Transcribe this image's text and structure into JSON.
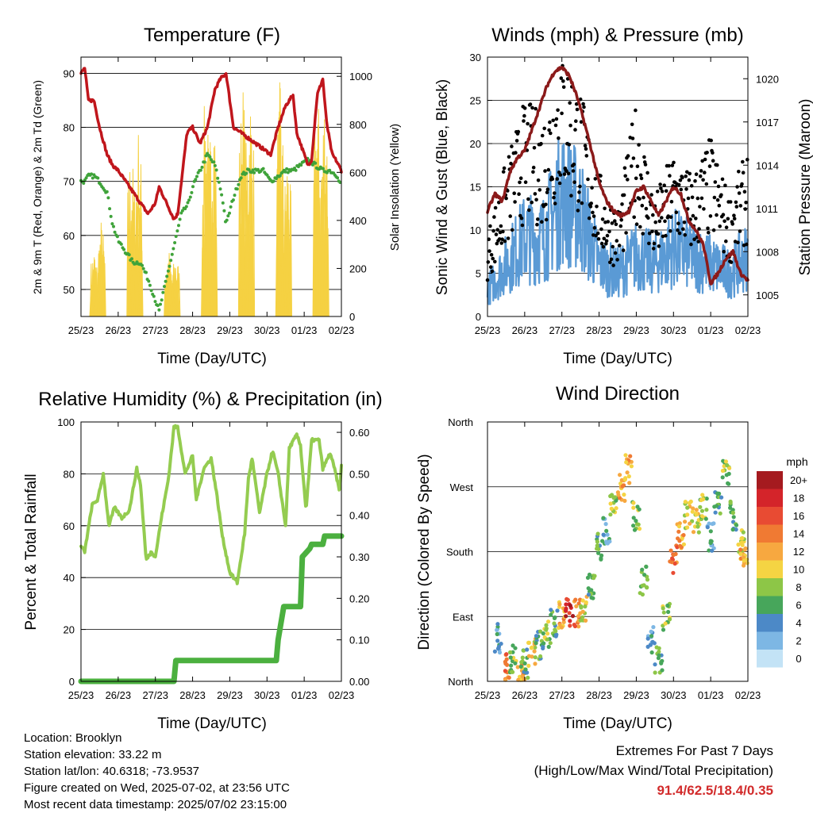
{
  "info": {
    "location": "Location: Brooklyn",
    "elevation": "Station elevation: 33.22 m",
    "latlon": "Station lat/lon: 40.6318; -73.9537",
    "created": "Figure created on Wed, 2025-07-02, at 23:56 UTC",
    "recent": "Most recent data timestamp: 2025/07/02 23:15:00"
  },
  "extremes": {
    "title": "Extremes For Past 7 Days",
    "subtitle": "(High/Low/Max Wind/Total Precipitation)",
    "values": "91.4/62.5/18.4/0.35"
  },
  "colors": {
    "temperature": "#c0161c",
    "dewpoint": "#3fa33a",
    "solar": "#f5d142",
    "wind": "#5a9ad5",
    "gust": "#000000",
    "pressure": "#8b1a1a",
    "humidity": "#94cc50",
    "precip": "#4bb03f"
  },
  "chart_data": [
    {
      "type": "line",
      "title": "Temperature (F)",
      "xlabel": "Time (Day/UTC)",
      "ylabel": "2m & 9m T (Red, Orange) & 2m Td (Green)",
      "ylabel_right": "Solar Insolation (Yellow)",
      "x_ticks": [
        "25/23",
        "26/23",
        "27/23",
        "28/23",
        "29/23",
        "30/23",
        "01/23",
        "02/23"
      ],
      "ylim": [
        45,
        93
      ],
      "y_ticks": [
        50,
        60,
        70,
        80,
        90
      ],
      "ylim_right": [
        0,
        1080
      ],
      "y_ticks_right": [
        0,
        200,
        400,
        600,
        800,
        1000
      ],
      "series": [
        {
          "name": "2m T",
          "x": [
            0,
            0.1,
            0.2,
            0.35,
            0.5,
            0.7,
            0.85,
            1.0,
            1.2,
            1.4,
            1.6,
            1.8,
            2.0,
            2.1,
            2.3,
            2.5,
            2.6,
            2.7,
            2.85,
            3.0,
            3.2,
            3.4,
            3.6,
            3.75,
            3.9,
            4.1,
            4.3,
            4.5,
            4.7,
            4.9,
            5.1,
            5.3,
            5.5,
            5.7,
            5.8,
            5.95,
            6.1,
            6.2,
            6.35,
            6.5,
            6.6,
            6.75,
            6.85,
            7.0
          ],
          "values": [
            90,
            91,
            85,
            85,
            80,
            75,
            73,
            72,
            70,
            68,
            66,
            64,
            66,
            69,
            66,
            63,
            64,
            70,
            79,
            80,
            77,
            80,
            87,
            89,
            90,
            80,
            79,
            78,
            77,
            76,
            75,
            80,
            84,
            86,
            79,
            76,
            73,
            74,
            86,
            89,
            81,
            75,
            74,
            72
          ]
        },
        {
          "name": "2m Td",
          "x": [
            0,
            0.1,
            0.2,
            0.35,
            0.5,
            0.7,
            0.85,
            1.0,
            1.2,
            1.4,
            1.6,
            1.8,
            2.0,
            2.1,
            2.3,
            2.5,
            2.7,
            2.9,
            3.0,
            3.2,
            3.4,
            3.6,
            3.8,
            3.9,
            4.1,
            4.3,
            4.5,
            4.7,
            4.9,
            5.1,
            5.3,
            5.5,
            5.7,
            5.9,
            6.1,
            6.3,
            6.5,
            6.7,
            6.9,
            7.0
          ],
          "values": [
            70,
            70,
            71,
            71,
            70,
            68,
            62,
            59,
            57,
            55,
            55,
            52,
            48,
            46,
            52,
            58,
            64,
            66,
            69,
            72,
            75,
            73,
            67,
            62,
            67,
            71,
            72,
            72,
            72,
            70,
            71,
            72,
            72,
            73,
            74,
            73,
            72,
            72,
            71,
            69
          ]
        },
        {
          "name": "Solar",
          "axis": "right",
          "peaks_x": [
            0.35,
            0.55,
            1.35,
            1.55,
            2.35,
            2.55,
            3.35,
            3.55,
            4.35,
            4.55,
            5.35,
            5.55,
            6.35,
            6.55
          ],
          "peaks": [
            300,
            420,
            750,
            820,
            300,
            280,
            980,
            1000,
            1010,
            1000,
            1000,
            720,
            1000,
            1000
          ]
        }
      ]
    },
    {
      "type": "scatter",
      "title": "Winds (mph) & Pressure (mb)",
      "xlabel": "Time (Day/UTC)",
      "ylabel": "Sonic Wind & Gust (Blue, Black)",
      "ylabel_right": "Station Pressure (Maroon)",
      "x_ticks": [
        "25/23",
        "26/23",
        "27/23",
        "28/23",
        "29/23",
        "30/23",
        "01/23",
        "02/23"
      ],
      "ylim": [
        0,
        30
      ],
      "y_ticks": [
        0,
        5,
        10,
        15,
        20,
        25,
        30
      ],
      "ylim_right": [
        1003.5,
        1021.5
      ],
      "y_ticks_right": [
        1005,
        1008,
        1011,
        1014,
        1017,
        1020
      ],
      "series": [
        {
          "name": "Wind",
          "x": [
            0,
            0.5,
            1.0,
            1.5,
            2.0,
            2.5,
            3.0,
            3.5,
            4.0,
            4.5,
            5.0,
            5.5,
            6.0,
            6.5,
            7.0
          ],
          "values": [
            3,
            6,
            9,
            9,
            14,
            12,
            6,
            5,
            7,
            6,
            8,
            7,
            6,
            5,
            7
          ]
        },
        {
          "name": "Gust",
          "x": [
            0,
            0.5,
            1.0,
            1.5,
            2.0,
            2.5,
            3.0,
            3.5,
            4.0,
            4.5,
            5.0,
            5.5,
            6.0,
            6.5,
            7.0
          ],
          "values": [
            7,
            13,
            18,
            17,
            23,
            19,
            12,
            9,
            18,
            10,
            14,
            12,
            15,
            10,
            14
          ]
        },
        {
          "name": "Pressure",
          "axis": "right",
          "x": [
            0,
            0.2,
            0.4,
            0.6,
            0.8,
            1.0,
            1.2,
            1.4,
            1.6,
            1.8,
            2.0,
            2.2,
            2.4,
            2.6,
            2.8,
            3.0,
            3.2,
            3.4,
            3.6,
            3.8,
            4.0,
            4.2,
            4.4,
            4.6,
            4.8,
            5.0,
            5.2,
            5.4,
            5.6,
            5.8,
            6.0,
            6.2,
            6.4,
            6.6,
            6.8,
            7.0
          ],
          "values": [
            1010.8,
            1012,
            1011.5,
            1013.5,
            1014.5,
            1015,
            1016.5,
            1018,
            1019.5,
            1020.5,
            1020.8,
            1020.2,
            1018.8,
            1017,
            1015,
            1012.8,
            1011.5,
            1010.8,
            1010.5,
            1010.8,
            1012.2,
            1012.5,
            1011.5,
            1010.5,
            1011.5,
            1012.5,
            1012,
            1010.2,
            1009.5,
            1008.5,
            1005.8,
            1006.5,
            1007.5,
            1008,
            1006.5,
            1006
          ]
        }
      ]
    },
    {
      "type": "line",
      "title": "Relative Humidity (%) & Precipitation (in)",
      "xlabel": "Time (Day/UTC)",
      "ylabel": "Percent & Total Rainfall",
      "x_ticks": [
        "25/23",
        "26/23",
        "27/23",
        "28/23",
        "29/23",
        "30/23",
        "01/23",
        "02/23"
      ],
      "ylim": [
        0,
        100
      ],
      "y_ticks": [
        0,
        20,
        40,
        60,
        80,
        100
      ],
      "ylim_right": [
        0,
        0.625
      ],
      "y_ticks_right": [
        "0.00",
        "0.10",
        "0.20",
        "0.30",
        "0.40",
        "0.50",
        "0.60"
      ],
      "series": [
        {
          "name": "Relative Humidity",
          "x": [
            0,
            0.1,
            0.3,
            0.45,
            0.6,
            0.75,
            0.9,
            1.1,
            1.3,
            1.5,
            1.6,
            1.75,
            1.9,
            2.0,
            2.15,
            2.35,
            2.5,
            2.6,
            2.8,
            3.0,
            3.1,
            3.3,
            3.5,
            3.65,
            3.8,
            4.0,
            4.2,
            4.4,
            4.5,
            4.6,
            4.8,
            5.0,
            5.15,
            5.3,
            5.5,
            5.6,
            5.8,
            5.9,
            6.05,
            6.2,
            6.4,
            6.5,
            6.7,
            6.85,
            6.95,
            7.0
          ],
          "values": [
            52,
            50,
            68,
            70,
            80,
            60,
            67,
            63,
            66,
            82,
            76,
            47,
            50,
            48,
            62,
            78,
            98,
            98,
            80,
            87,
            70,
            82,
            86,
            72,
            56,
            42,
            38,
            57,
            78,
            86,
            65,
            80,
            89,
            80,
            60,
            90,
            95,
            91,
            66,
            93,
            93,
            82,
            88,
            80,
            73,
            83
          ]
        },
        {
          "name": "Total Rainfall",
          "axis": "right",
          "x": [
            0,
            1.7,
            2.5,
            2.55,
            5.25,
            5.3,
            5.45,
            5.9,
            5.95,
            6.15,
            6.2,
            6.5,
            6.55,
            7.0
          ],
          "values": [
            0,
            0,
            0,
            0.05,
            0.05,
            0.1,
            0.18,
            0.18,
            0.3,
            0.32,
            0.33,
            0.33,
            0.35,
            0.35
          ]
        }
      ]
    },
    {
      "type": "scatter",
      "title": "Wind Direction",
      "xlabel": "Time (Day/UTC)",
      "ylabel": "Direction (Colored By Speed)",
      "x_ticks": [
        "25/23",
        "26/23",
        "27/23",
        "28/23",
        "29/23",
        "30/23",
        "01/23",
        "02/23"
      ],
      "y_ticks": [
        "North",
        "East",
        "South",
        "West",
        "North"
      ],
      "ylim": [
        0,
        360
      ],
      "colorbar": {
        "title": "mph",
        "labels": [
          "20+",
          "18",
          "16",
          "14",
          "12",
          "10",
          "8",
          "6",
          "4",
          "2",
          "0"
        ],
        "colors": [
          "#a51a1f",
          "#d4242a",
          "#e84b33",
          "#f07a33",
          "#f7a840",
          "#f5d443",
          "#8dc647",
          "#47a65b",
          "#4c89c7",
          "#7db7e4",
          "#c3e3f6"
        ]
      },
      "series": [
        {
          "name": "Direction",
          "x": [
            0.3,
            0.5,
            0.7,
            0.9,
            1.0,
            1.2,
            1.4,
            1.6,
            1.8,
            2.0,
            2.2,
            2.4,
            2.6,
            2.8,
            3.0,
            3.2,
            3.4,
            3.6,
            3.8,
            4.0,
            4.2,
            4.4,
            4.6,
            4.8,
            5.0,
            5.2,
            5.4,
            5.6,
            5.8,
            6.0,
            6.2,
            6.4,
            6.6,
            6.8,
            6.9
          ],
          "values": [
            60,
            20,
            30,
            10,
            25,
            40,
            50,
            65,
            80,
            90,
            95,
            95,
            100,
            130,
            185,
            210,
            240,
            270,
            295,
            230,
            140,
            60,
            30,
            90,
            170,
            200,
            230,
            225,
            240,
            200,
            250,
            290,
            230,
            190,
            180
          ],
          "speeds": [
            4,
            14,
            8,
            12,
            6,
            10,
            6,
            8,
            6,
            12,
            18,
            14,
            10,
            6,
            6,
            4,
            8,
            12,
            12,
            8,
            6,
            4,
            6,
            8,
            14,
            12,
            10,
            10,
            8,
            4,
            6,
            8,
            6,
            10,
            12
          ]
        }
      ]
    }
  ]
}
